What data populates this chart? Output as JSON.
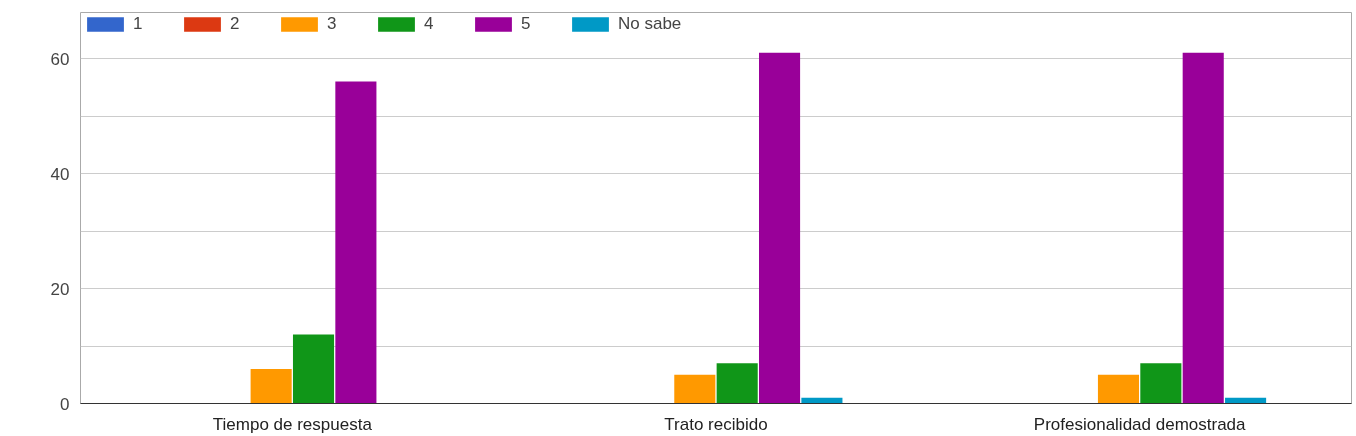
{
  "chart_data": {
    "type": "bar",
    "categories": [
      "Tiempo de respuesta",
      "Trato recibido",
      "Profesionalidad demostrada"
    ],
    "series": [
      {
        "name": "1",
        "color": "#3366cc",
        "values": [
          0,
          0,
          0
        ]
      },
      {
        "name": "2",
        "color": "#dc3912",
        "values": [
          0,
          0,
          0
        ]
      },
      {
        "name": "3",
        "color": "#ff9900",
        "values": [
          6,
          5,
          5
        ]
      },
      {
        "name": "4",
        "color": "#109618",
        "values": [
          12,
          7,
          7
        ]
      },
      {
        "name": "5",
        "color": "#990099",
        "values": [
          56,
          61,
          61
        ]
      },
      {
        "name": "No sabe",
        "color": "#0099c6",
        "values": [
          0,
          1,
          1
        ]
      }
    ],
    "ylim": [
      0,
      68
    ],
    "yticks": [
      0,
      {
        "value": 10,
        "label": null
      },
      20,
      {
        "value": 30,
        "label": null
      },
      40,
      {
        "value": 50,
        "label": null
      },
      60
    ],
    "grid": "y",
    "legend": "top left"
  }
}
